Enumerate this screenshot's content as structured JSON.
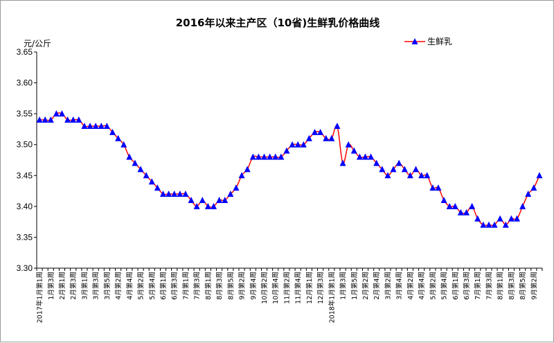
{
  "chart_data": {
    "type": "line",
    "title": "2016年以来主产区（10省)生鲜乳价格曲线",
    "ylabel": "元/公斤",
    "xlabel": "",
    "ylim": [
      3.3,
      3.65
    ],
    "yticks": [
      "3.30",
      "3.35",
      "3.40",
      "3.45",
      "3.50",
      "3.55",
      "3.60",
      "3.65"
    ],
    "grid": false,
    "legend": "top-right",
    "x_labels": [
      "2017年1月第1周",
      "1月第3周",
      "2月第1周",
      "2月第3周",
      "3月第1周",
      "3月第3周",
      "3月第5周",
      "4月第2周",
      "4月第4周",
      "5月第2周",
      "5月第4周",
      "6月第1周",
      "6月第3周",
      "7月第1周",
      "7月第3周",
      "8月第1周",
      "8月第3周",
      "8月第5周",
      "9月第2周",
      "9月第4周",
      "10月第2周",
      "10月第4周",
      "11月第2周",
      "11月第4周",
      "12月第1周",
      "12月第3周",
      "2018年1月第1周",
      "1月第3周",
      "1月第5周",
      "2月第2周",
      "2月第4周",
      "3月第2周",
      "3月第4周",
      "4月第2周",
      "4月第4周",
      "5月第2周",
      "5月第4周",
      "6月第1周",
      "6月第3周",
      "7月第1周",
      "7月第3周",
      "8月第1周",
      "8月第3周",
      "8月第5周",
      "9月第2周"
    ],
    "series": [
      {
        "name": "生鲜乳",
        "color": "#ff0000",
        "marker_color": "#0000ff",
        "values": [
          3.54,
          3.54,
          3.54,
          3.55,
          3.55,
          3.54,
          3.54,
          3.54,
          3.53,
          3.53,
          3.53,
          3.53,
          3.53,
          3.52,
          3.51,
          3.5,
          3.48,
          3.47,
          3.46,
          3.45,
          3.44,
          3.43,
          3.42,
          3.42,
          3.42,
          3.42,
          3.42,
          3.41,
          3.4,
          3.41,
          3.4,
          3.4,
          3.41,
          3.41,
          3.42,
          3.43,
          3.45,
          3.46,
          3.48,
          3.48,
          3.48,
          3.48,
          3.48,
          3.48,
          3.49,
          3.5,
          3.5,
          3.5,
          3.51,
          3.52,
          3.52,
          3.51,
          3.51,
          3.53,
          3.47,
          3.5,
          3.49,
          3.48,
          3.48,
          3.48,
          3.47,
          3.46,
          3.45,
          3.46,
          3.47,
          3.46,
          3.45,
          3.46,
          3.45,
          3.45,
          3.43,
          3.43,
          3.41,
          3.4,
          3.4,
          3.39,
          3.39,
          3.4,
          3.38,
          3.37,
          3.37,
          3.37,
          3.38,
          3.37,
          3.38,
          3.38,
          3.4,
          3.42,
          3.43,
          3.45
        ]
      }
    ]
  }
}
